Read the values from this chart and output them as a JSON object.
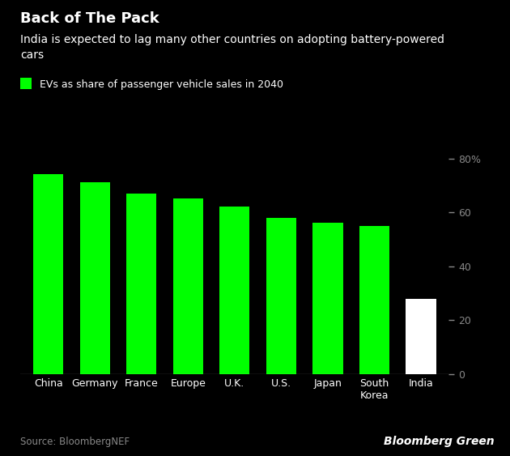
{
  "title": "Back of The Pack",
  "subtitle": "India is expected to lag many other countries on adopting battery-powered\ncars",
  "legend_label": "EVs as share of passenger vehicle sales in 2040",
  "categories": [
    "China",
    "Germany",
    "France",
    "Europe",
    "U.K.",
    "U.S.",
    "Japan",
    "South\nKorea",
    "India"
  ],
  "values": [
    74,
    71,
    67,
    65,
    62,
    58,
    56,
    55,
    28
  ],
  "bar_colors": [
    "#00ff00",
    "#00ff00",
    "#00ff00",
    "#00ff00",
    "#00ff00",
    "#00ff00",
    "#00ff00",
    "#00ff00",
    "#ffffff"
  ],
  "background_color": "#000000",
  "text_color": "#ffffff",
  "axis_tick_color": "#888888",
  "ylim": [
    0,
    88
  ],
  "yticks": [
    0,
    20,
    40,
    60,
    80
  ],
  "ytick_labels": [
    "0",
    "20",
    "40",
    "60",
    "80%"
  ],
  "source_text": "Source: BloombergNEF",
  "brand_text": "Bloomberg Green",
  "legend_color": "#00ff00",
  "title_fontsize": 13,
  "subtitle_fontsize": 10,
  "legend_fontsize": 9,
  "tick_fontsize": 9,
  "source_fontsize": 8.5,
  "brand_fontsize": 10
}
